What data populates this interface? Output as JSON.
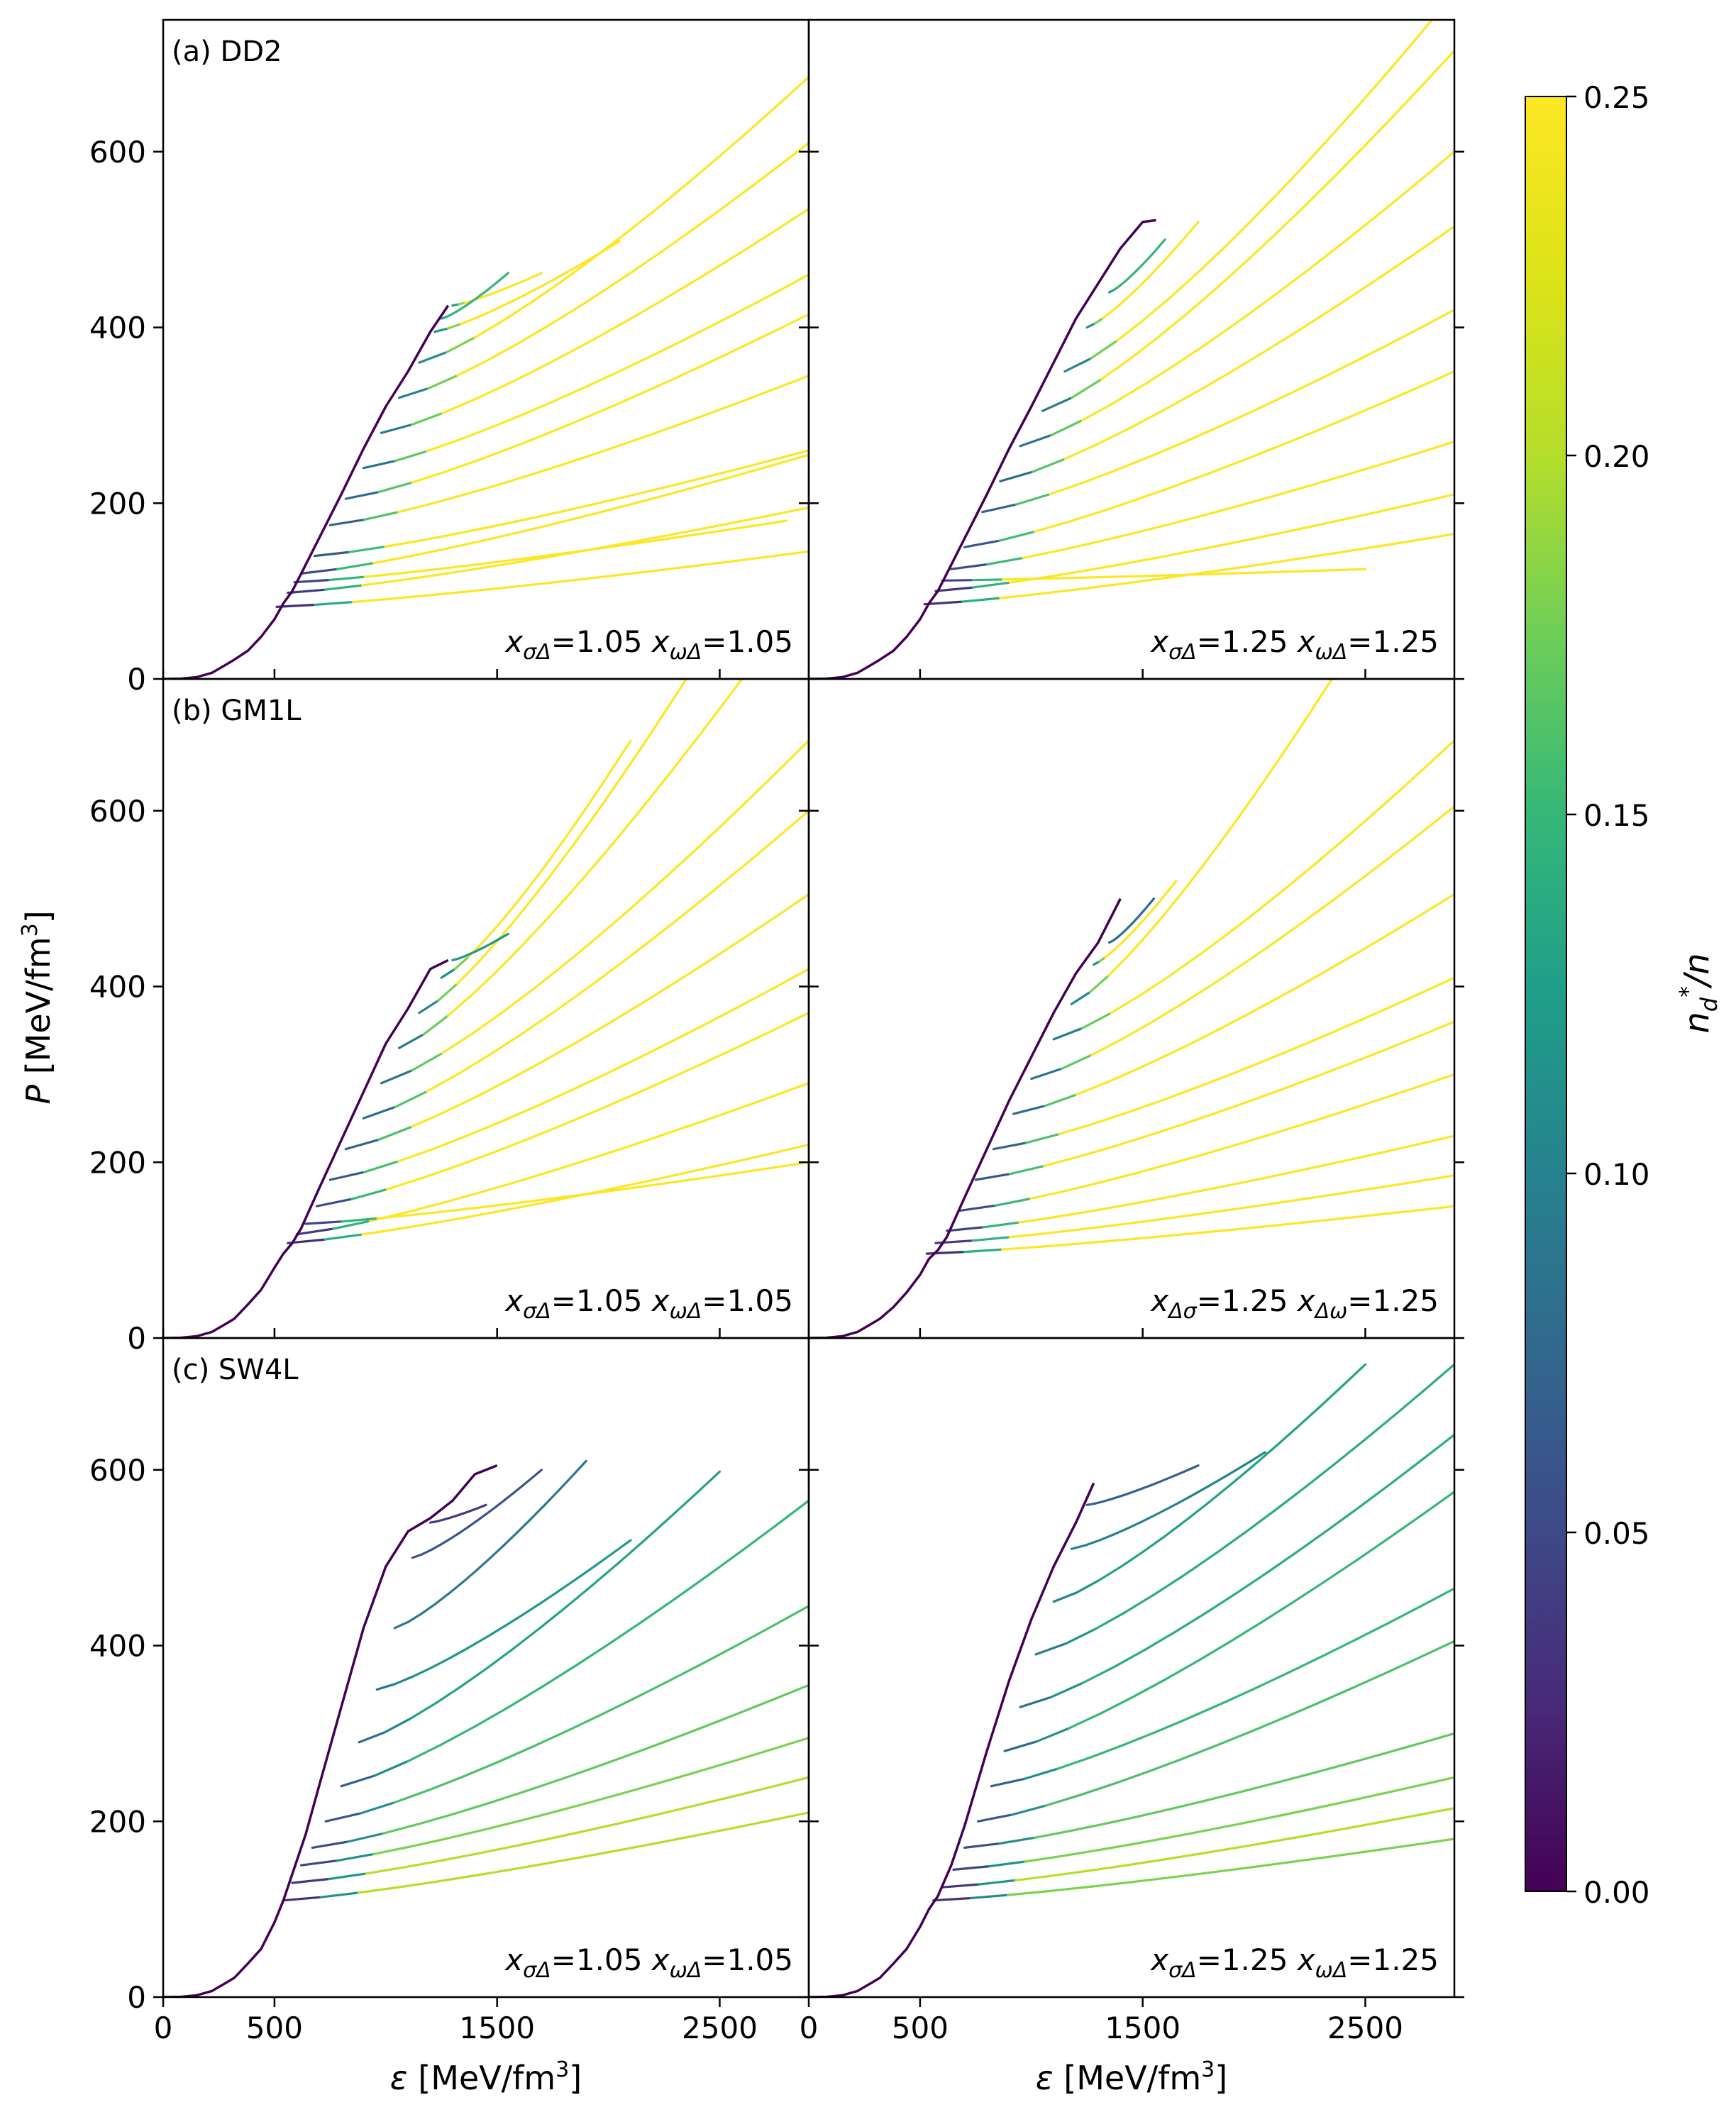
{
  "chart_data": {
    "type": "line",
    "description_axes": {
      "xlabel_symbol": "ε",
      "xlabel_unit_prefix": " [MeV/fm",
      "xlabel_unit_power": "3",
      "xlabel_unit_suffix": "]",
      "ylabel_symbol": "P",
      "ylabel_unit_prefix": " [MeV/fm",
      "ylabel_unit_power": "3",
      "ylabel_unit_suffix": "]"
    },
    "xlim": [
      0,
      2900
    ],
    "ylim": [
      0,
      750
    ],
    "x_ticks": [
      0,
      500,
      1500,
      2500
    ],
    "x_tick_labels": [
      "0",
      "500",
      "1500",
      "2500"
    ],
    "y_ticks": [
      0,
      200,
      400,
      600
    ],
    "y_tick_labels": [
      "0",
      "200",
      "400",
      "600"
    ],
    "colorbar": {
      "label_base": "n",
      "label_sub": "d",
      "label_sup": "*",
      "label_tail": "/n",
      "range": [
        0,
        0.25
      ],
      "ticks": [
        0,
        0.05,
        0.1,
        0.15,
        0.2,
        0.25
      ],
      "tick_labels": [
        "0.00",
        "0.05",
        "0.10",
        "0.15",
        "0.20",
        "0.25"
      ],
      "colormap": "viridis"
    },
    "panels": [
      {
        "row": 0,
        "col": 0,
        "label": "(a) DD2",
        "xs": "1.05",
        "xw": "1.05",
        "order": "standard",
        "base": [
          [
            0,
            0
          ],
          [
            80,
            0.3
          ],
          [
            150,
            2
          ],
          [
            220,
            7
          ],
          [
            280,
            16
          ],
          [
            320,
            22
          ],
          [
            380,
            32
          ],
          [
            440,
            48
          ],
          [
            500,
            68
          ],
          [
            540,
            86
          ],
          [
            580,
            100
          ],
          [
            620,
            120
          ],
          [
            700,
            160
          ],
          [
            800,
            210
          ],
          [
            900,
            262
          ],
          [
            1000,
            310
          ],
          [
            1100,
            350
          ],
          [
            1200,
            395
          ],
          [
            1280,
            425
          ]
        ],
        "branches": [
          {
            "x0": 510,
            "y0": 82,
            "x1": 2900,
            "y1": 145,
            "c": 0.25
          },
          {
            "x0": 560,
            "y0": 98,
            "x1": 2900,
            "y1": 195,
            "c": 0.25
          },
          {
            "x0": 590,
            "y0": 110,
            "x1": 2800,
            "y1": 180,
            "c": 0.25
          },
          {
            "x0": 620,
            "y0": 120,
            "x1": 2900,
            "y1": 255,
            "c": 0.25
          },
          {
            "x0": 680,
            "y0": 140,
            "x1": 2900,
            "y1": 260,
            "c": 0.25
          },
          {
            "x0": 750,
            "y0": 175,
            "x1": 2900,
            "y1": 345,
            "c": 0.25
          },
          {
            "x0": 820,
            "y0": 205,
            "x1": 2900,
            "y1": 415,
            "c": 0.25
          },
          {
            "x0": 900,
            "y0": 240,
            "x1": 2900,
            "y1": 460,
            "c": 0.25
          },
          {
            "x0": 980,
            "y0": 280,
            "x1": 2900,
            "y1": 535,
            "c": 0.25
          },
          {
            "x0": 1060,
            "y0": 320,
            "x1": 2900,
            "y1": 610,
            "c": 0.25
          },
          {
            "x0": 1150,
            "y0": 360,
            "x1": 2900,
            "y1": 685,
            "c": 0.25
          },
          {
            "x0": 1220,
            "y0": 395,
            "x1": 2050,
            "y1": 498,
            "c": 0.25
          },
          {
            "x0": 1300,
            "y0": 425,
            "x1": 1700,
            "y1": 462,
            "c": 0.25
          },
          {
            "x0": 1250,
            "y0": 410,
            "x1": 1550,
            "y1": 462,
            "c": 0.15
          }
        ]
      },
      {
        "row": 0,
        "col": 1,
        "label": "",
        "xs": "1.25",
        "xw": "1.25",
        "order": "standard",
        "base": [
          [
            0,
            0
          ],
          [
            80,
            0.3
          ],
          [
            150,
            2
          ],
          [
            220,
            7
          ],
          [
            280,
            16
          ],
          [
            320,
            22
          ],
          [
            380,
            32
          ],
          [
            440,
            48
          ],
          [
            500,
            68
          ],
          [
            540,
            86
          ],
          [
            580,
            100
          ],
          [
            620,
            120
          ],
          [
            700,
            160
          ],
          [
            800,
            210
          ],
          [
            900,
            262
          ],
          [
            1000,
            310
          ],
          [
            1100,
            360
          ],
          [
            1200,
            410
          ],
          [
            1300,
            450
          ],
          [
            1400,
            490
          ],
          [
            1500,
            520
          ],
          [
            1560,
            522
          ]
        ],
        "branches": [
          {
            "x0": 520,
            "y0": 85,
            "x1": 2900,
            "y1": 165,
            "c": 0.25
          },
          {
            "x0": 570,
            "y0": 100,
            "x1": 2900,
            "y1": 210,
            "c": 0.25
          },
          {
            "x0": 600,
            "y0": 112,
            "x1": 2500,
            "y1": 125,
            "c": 0.25
          },
          {
            "x0": 640,
            "y0": 125,
            "x1": 2900,
            "y1": 270,
            "c": 0.25
          },
          {
            "x0": 700,
            "y0": 150,
            "x1": 2900,
            "y1": 350,
            "c": 0.25
          },
          {
            "x0": 780,
            "y0": 190,
            "x1": 2900,
            "y1": 420,
            "c": 0.25
          },
          {
            "x0": 860,
            "y0": 225,
            "x1": 2900,
            "y1": 515,
            "c": 0.25
          },
          {
            "x0": 950,
            "y0": 265,
            "x1": 2900,
            "y1": 600,
            "c": 0.25
          },
          {
            "x0": 1050,
            "y0": 305,
            "x1": 2900,
            "y1": 715,
            "c": 0.25
          },
          {
            "x0": 1150,
            "y0": 350,
            "x1": 2800,
            "y1": 750,
            "c": 0.25
          },
          {
            "x0": 1250,
            "y0": 400,
            "x1": 1750,
            "y1": 520,
            "c": 0.25
          },
          {
            "x0": 1350,
            "y0": 440,
            "x1": 1600,
            "y1": 500,
            "c": 0.15
          }
        ]
      },
      {
        "row": 1,
        "col": 0,
        "label": "(b) GM1L",
        "xs": "1.05",
        "xw": "1.05",
        "order": "standard",
        "base": [
          [
            0,
            0
          ],
          [
            80,
            0.3
          ],
          [
            150,
            2
          ],
          [
            220,
            7
          ],
          [
            280,
            16
          ],
          [
            320,
            22
          ],
          [
            380,
            38
          ],
          [
            440,
            55
          ],
          [
            500,
            80
          ],
          [
            540,
            96
          ],
          [
            580,
            108
          ],
          [
            620,
            125
          ],
          [
            700,
            170
          ],
          [
            800,
            225
          ],
          [
            900,
            280
          ],
          [
            1000,
            335
          ],
          [
            1100,
            375
          ],
          [
            1200,
            420
          ],
          [
            1280,
            430
          ]
        ],
        "branches": [
          {
            "x0": 560,
            "y0": 108,
            "x1": 2900,
            "y1": 220,
            "c": 0.25
          },
          {
            "x0": 600,
            "y0": 118,
            "x1": 2900,
            "y1": 290,
            "c": 0.25
          },
          {
            "x0": 640,
            "y0": 130,
            "x1": 2900,
            "y1": 200,
            "c": 0.25
          },
          {
            "x0": 690,
            "y0": 150,
            "x1": 2900,
            "y1": 370,
            "c": 0.25
          },
          {
            "x0": 750,
            "y0": 180,
            "x1": 2900,
            "y1": 420,
            "c": 0.25
          },
          {
            "x0": 820,
            "y0": 215,
            "x1": 2900,
            "y1": 505,
            "c": 0.25
          },
          {
            "x0": 900,
            "y0": 250,
            "x1": 2900,
            "y1": 600,
            "c": 0.25
          },
          {
            "x0": 980,
            "y0": 290,
            "x1": 2900,
            "y1": 680,
            "c": 0.25
          },
          {
            "x0": 1060,
            "y0": 330,
            "x1": 2600,
            "y1": 750,
            "c": 0.25
          },
          {
            "x0": 1150,
            "y0": 370,
            "x1": 2350,
            "y1": 750,
            "c": 0.25
          },
          {
            "x0": 1250,
            "y0": 410,
            "x1": 2100,
            "y1": 680,
            "c": 0.25
          },
          {
            "x0": 1300,
            "y0": 430,
            "x1": 1550,
            "y1": 460,
            "c": 0.12
          }
        ]
      },
      {
        "row": 1,
        "col": 1,
        "label": "",
        "xs": "1.25",
        "xw": "1.25",
        "order": "swapped",
        "base": [
          [
            0,
            0
          ],
          [
            80,
            0.3
          ],
          [
            150,
            2
          ],
          [
            220,
            7
          ],
          [
            280,
            16
          ],
          [
            320,
            22
          ],
          [
            380,
            35
          ],
          [
            440,
            52
          ],
          [
            500,
            72
          ],
          [
            540,
            90
          ],
          [
            580,
            100
          ],
          [
            620,
            115
          ],
          [
            700,
            160
          ],
          [
            800,
            215
          ],
          [
            900,
            270
          ],
          [
            1000,
            320
          ],
          [
            1100,
            370
          ],
          [
            1200,
            415
          ],
          [
            1300,
            450
          ],
          [
            1400,
            500
          ]
        ],
        "branches": [
          {
            "x0": 530,
            "y0": 96,
            "x1": 2900,
            "y1": 150,
            "c": 0.25
          },
          {
            "x0": 570,
            "y0": 108,
            "x1": 2900,
            "y1": 185,
            "c": 0.25
          },
          {
            "x0": 620,
            "y0": 122,
            "x1": 2900,
            "y1": 230,
            "c": 0.25
          },
          {
            "x0": 680,
            "y0": 145,
            "x1": 2900,
            "y1": 300,
            "c": 0.25
          },
          {
            "x0": 750,
            "y0": 180,
            "x1": 2900,
            "y1": 360,
            "c": 0.25
          },
          {
            "x0": 830,
            "y0": 215,
            "x1": 2900,
            "y1": 410,
            "c": 0.25
          },
          {
            "x0": 920,
            "y0": 255,
            "x1": 2900,
            "y1": 505,
            "c": 0.25
          },
          {
            "x0": 1000,
            "y0": 295,
            "x1": 2900,
            "y1": 605,
            "c": 0.25
          },
          {
            "x0": 1100,
            "y0": 340,
            "x1": 2900,
            "y1": 680,
            "c": 0.25
          },
          {
            "x0": 1180,
            "y0": 380,
            "x1": 2350,
            "y1": 750,
            "c": 0.25
          },
          {
            "x0": 1280,
            "y0": 425,
            "x1": 1650,
            "y1": 520,
            "c": 0.25
          },
          {
            "x0": 1350,
            "y0": 450,
            "x1": 1550,
            "y1": 500,
            "c": 0.08
          }
        ]
      },
      {
        "row": 2,
        "col": 0,
        "label": "(c) SW4L",
        "xs": "1.05",
        "xw": "1.05",
        "order": "standard",
        "base": [
          [
            0,
            0
          ],
          [
            80,
            0.3
          ],
          [
            150,
            2
          ],
          [
            220,
            7
          ],
          [
            280,
            16
          ],
          [
            320,
            22
          ],
          [
            380,
            38
          ],
          [
            440,
            55
          ],
          [
            500,
            85
          ],
          [
            540,
            110
          ],
          [
            580,
            140
          ],
          [
            640,
            185
          ],
          [
            700,
            240
          ],
          [
            800,
            330
          ],
          [
            900,
            420
          ],
          [
            1000,
            490
          ],
          [
            1100,
            530
          ],
          [
            1200,
            545
          ],
          [
            1300,
            565
          ],
          [
            1400,
            595
          ],
          [
            1500,
            605
          ]
        ],
        "branches": [
          {
            "x0": 540,
            "y0": 110,
            "x1": 2900,
            "y1": 210,
            "c": 0.2
          },
          {
            "x0": 580,
            "y0": 130,
            "x1": 2900,
            "y1": 250,
            "c": 0.2
          },
          {
            "x0": 620,
            "y0": 150,
            "x1": 2900,
            "y1": 295,
            "c": 0.18
          },
          {
            "x0": 670,
            "y0": 170,
            "x1": 2900,
            "y1": 355,
            "c": 0.17
          },
          {
            "x0": 730,
            "y0": 200,
            "x1": 2900,
            "y1": 445,
            "c": 0.16
          },
          {
            "x0": 800,
            "y0": 240,
            "x1": 2900,
            "y1": 565,
            "c": 0.15
          },
          {
            "x0": 880,
            "y0": 290,
            "x1": 2500,
            "y1": 598,
            "c": 0.13
          },
          {
            "x0": 960,
            "y0": 350,
            "x1": 2100,
            "y1": 520,
            "c": 0.12
          },
          {
            "x0": 1040,
            "y0": 420,
            "x1": 1900,
            "y1": 610,
            "c": 0.09
          },
          {
            "x0": 1120,
            "y0": 500,
            "x1": 1700,
            "y1": 600,
            "c": 0.06
          },
          {
            "x0": 1200,
            "y0": 540,
            "x1": 1450,
            "y1": 560,
            "c": 0.04
          }
        ]
      },
      {
        "row": 2,
        "col": 1,
        "label": "",
        "xs": "1.25",
        "xw": "1.25",
        "order": "standard",
        "base": [
          [
            0,
            0
          ],
          [
            80,
            0.3
          ],
          [
            150,
            2
          ],
          [
            220,
            7
          ],
          [
            280,
            16
          ],
          [
            320,
            22
          ],
          [
            380,
            38
          ],
          [
            440,
            55
          ],
          [
            500,
            80
          ],
          [
            540,
            100
          ],
          [
            580,
            115
          ],
          [
            640,
            150
          ],
          [
            700,
            195
          ],
          [
            800,
            280
          ],
          [
            900,
            360
          ],
          [
            1000,
            430
          ],
          [
            1100,
            490
          ],
          [
            1200,
            540
          ],
          [
            1280,
            585
          ]
        ],
        "branches": [
          {
            "x0": 560,
            "y0": 110,
            "x1": 2900,
            "y1": 180,
            "c": 0.18
          },
          {
            "x0": 600,
            "y0": 125,
            "x1": 2900,
            "y1": 215,
            "c": 0.2
          },
          {
            "x0": 650,
            "y0": 145,
            "x1": 2900,
            "y1": 250,
            "c": 0.18
          },
          {
            "x0": 700,
            "y0": 170,
            "x1": 2900,
            "y1": 300,
            "c": 0.17
          },
          {
            "x0": 760,
            "y0": 200,
            "x1": 2900,
            "y1": 405,
            "c": 0.16
          },
          {
            "x0": 820,
            "y0": 240,
            "x1": 2900,
            "y1": 465,
            "c": 0.15
          },
          {
            "x0": 880,
            "y0": 280,
            "x1": 2900,
            "y1": 575,
            "c": 0.15
          },
          {
            "x0": 950,
            "y0": 330,
            "x1": 2900,
            "y1": 640,
            "c": 0.14
          },
          {
            "x0": 1020,
            "y0": 390,
            "x1": 2900,
            "y1": 720,
            "c": 0.14
          },
          {
            "x0": 1100,
            "y0": 450,
            "x1": 2500,
            "y1": 720,
            "c": 0.13
          },
          {
            "x0": 1180,
            "y0": 510,
            "x1": 2050,
            "y1": 620,
            "c": 0.1
          },
          {
            "x0": 1250,
            "y0": 560,
            "x1": 1750,
            "y1": 605,
            "c": 0.07
          }
        ]
      }
    ]
  }
}
